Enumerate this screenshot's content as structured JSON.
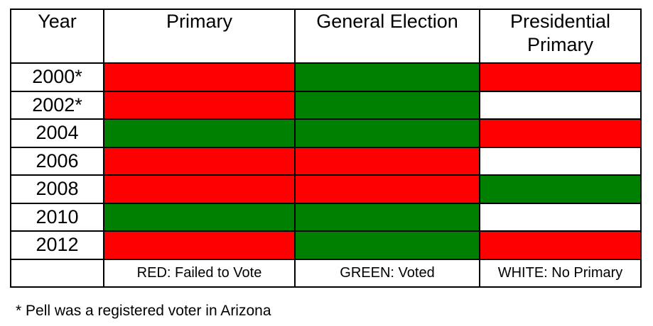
{
  "colors": {
    "red": "#ff0000",
    "green": "#008000",
    "white": "#ffffff",
    "border": "#000000",
    "text": "#000000"
  },
  "header": {
    "col_year": "Year",
    "col_primary": "Primary",
    "col_general": "General Election",
    "col_presidential": "Presidential Primary"
  },
  "legend": {
    "year": "",
    "primary": "RED: Failed to Vote",
    "general": "GREEN: Voted",
    "presidential": "WHITE: No Primary"
  },
  "footnote": "* Pell was a registered voter in Arizona",
  "chart_data": {
    "type": "table",
    "title": "",
    "columns": [
      "Year",
      "Primary",
      "General Election",
      "Presidential Primary"
    ],
    "cell_encoding": {
      "Failed to Vote": "red",
      "Voted": "green",
      "No Primary": "white"
    },
    "rows": [
      {
        "year": "2000*",
        "primary": "Failed to Vote",
        "general_election": "Voted",
        "presidential_primary": "Failed to Vote"
      },
      {
        "year": "2002*",
        "primary": "Failed to Vote",
        "general_election": "Voted",
        "presidential_primary": "No Primary"
      },
      {
        "year": "2004",
        "primary": "Voted",
        "general_election": "Voted",
        "presidential_primary": "Failed to Vote"
      },
      {
        "year": "2006",
        "primary": "Failed to Vote",
        "general_election": "Failed to Vote",
        "presidential_primary": "No Primary"
      },
      {
        "year": "2008",
        "primary": "Failed to Vote",
        "general_election": "Failed to Vote",
        "presidential_primary": "Voted"
      },
      {
        "year": "2010",
        "primary": "Voted",
        "general_election": "Voted",
        "presidential_primary": "No Primary"
      },
      {
        "year": "2012",
        "primary": "Failed to Vote",
        "general_election": "Voted",
        "presidential_primary": "Failed to Vote"
      }
    ],
    "legend": [
      {
        "color": "#ff0000",
        "label": "RED: Failed to Vote"
      },
      {
        "color": "#008000",
        "label": "GREEN: Voted"
      },
      {
        "color": "#ffffff",
        "label": "WHITE: No Primary"
      }
    ],
    "footnote": "* Pell was a registered voter in Arizona"
  }
}
